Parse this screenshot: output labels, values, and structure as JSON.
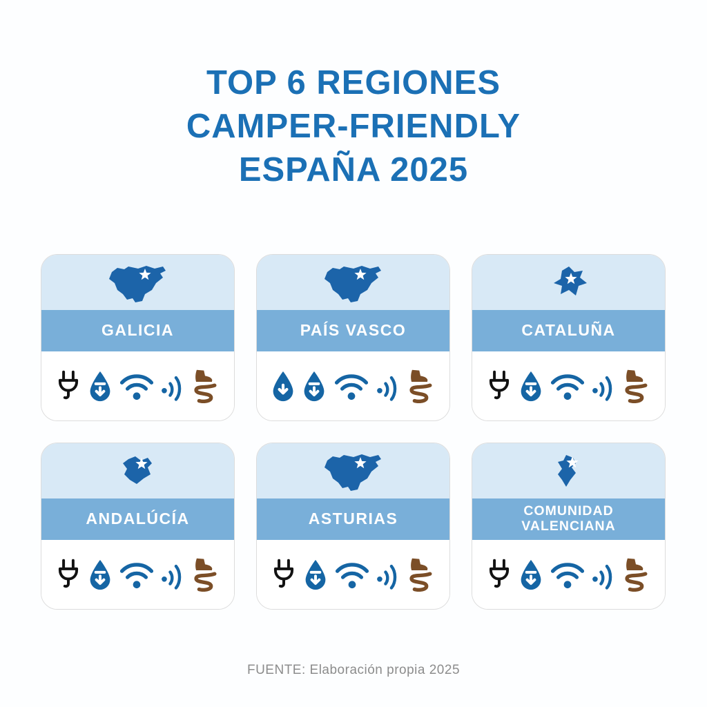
{
  "page": {
    "title_lines": [
      "TOP 6 REGIONES",
      "CAMPER-FRIENDLY",
      "ESPAÑA 2025"
    ],
    "footer": "FUENTE: Elaboración propia 2025"
  },
  "colors": {
    "title_blue": "#1B70B5",
    "map_blue": "#1C64A9",
    "band_blue": "#79AFD9",
    "card_top_blue": "#D8E9F6",
    "icon_blue": "#1565A4",
    "plug_black": "#121212",
    "trail_brown": "#7B4E27",
    "footer_gray": "#8C8C8C",
    "card_border": "#DCDCDC",
    "band_text": "#FFFFFF"
  },
  "cards": [
    {
      "id": "galicia",
      "name": "GALICIA",
      "map": "spain-map",
      "icons": [
        "plug-icon",
        "water-fill-drop-icon",
        "wifi-icon",
        "signal-icon",
        "hiking-trail-icon"
      ]
    },
    {
      "id": "pais-vasco",
      "name": "PAÍS VASCO",
      "map": "spain-map",
      "icons": [
        "water-drop-icon",
        "water-fill-drop-icon",
        "wifi-icon",
        "signal-icon",
        "hiking-trail-icon"
      ]
    },
    {
      "id": "cataluna",
      "name": "CATALUÑA",
      "map": "region-map-a",
      "icons": [
        "plug-icon",
        "water-fill-drop-icon",
        "wifi-icon",
        "signal-icon",
        "hiking-trail-icon"
      ]
    },
    {
      "id": "andalucia",
      "name": "ANDALÚCÍA",
      "map": "region-map-b",
      "icons": [
        "plug-icon",
        "water-fill-drop-icon",
        "wifi-icon",
        "signal-icon",
        "hiking-trail-icon"
      ]
    },
    {
      "id": "asturias",
      "name": "ASTURIAS",
      "map": "spain-map",
      "icons": [
        "plug-icon",
        "water-fill-drop-icon",
        "wifi-icon",
        "signal-icon",
        "hiking-trail-icon"
      ]
    },
    {
      "id": "comunidad-valenciana",
      "name": "COMUNIDAD VALENCIANA",
      "map": "region-map-c",
      "icons": [
        "plug-icon",
        "water-fill-drop-icon",
        "wifi-icon",
        "signal-icon",
        "hiking-trail-icon"
      ]
    }
  ]
}
